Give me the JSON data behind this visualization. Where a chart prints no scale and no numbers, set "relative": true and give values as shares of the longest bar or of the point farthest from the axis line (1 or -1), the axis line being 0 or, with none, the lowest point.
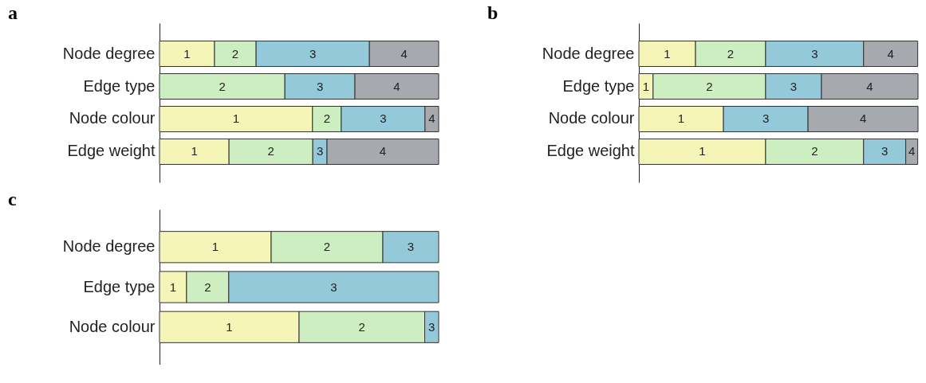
{
  "chart_data": [
    {
      "type": "bar",
      "title": "a",
      "orientation": "horizontal",
      "stacked": true,
      "relative": true,
      "tick_labels": "y",
      "categories": [
        "Node degree",
        "Edge type",
        "Node colour",
        "Edge weight"
      ],
      "series": [
        {
          "name": "1",
          "color": "#f5f5b8",
          "values": [
            0.197,
            0,
            0.548,
            0.249
          ]
        },
        {
          "name": "2",
          "color": "#cdeec0",
          "values": [
            0.149,
            0.449,
            0.103,
            0.3
          ]
        },
        {
          "name": "3",
          "color": "#94c9d9",
          "values": [
            0.406,
            0.251,
            0.3,
            0.051
          ]
        },
        {
          "name": "4",
          "color": "#a6a9ad",
          "values": [
            0.248,
            0.3,
            0.049,
            0.4
          ]
        }
      ]
    },
    {
      "type": "bar",
      "title": "b",
      "orientation": "horizontal",
      "stacked": true,
      "relative": true,
      "tick_labels": "y",
      "categories": [
        "Node degree",
        "Edge type",
        "Node colour",
        "Edge weight"
      ],
      "series": [
        {
          "name": "1",
          "color": "#f5f5b8",
          "values": [
            0.203,
            0.051,
            0.303,
            0.454
          ]
        },
        {
          "name": "2",
          "color": "#cdeec0",
          "values": [
            0.251,
            0.403,
            0,
            0.351
          ]
        },
        {
          "name": "3",
          "color": "#94c9d9",
          "values": [
            0.351,
            0.2,
            0.303,
            0.151
          ]
        },
        {
          "name": "4",
          "color": "#a6a9ad",
          "values": [
            0.194,
            0.346,
            0.394,
            0.043
          ]
        }
      ]
    },
    {
      "type": "bar",
      "title": "c",
      "orientation": "horizontal",
      "stacked": true,
      "relative": true,
      "tick_labels": "y",
      "categories": [
        "Node degree",
        "Edge type",
        "Node colour"
      ],
      "series": [
        {
          "name": "1",
          "color": "#f5f5b8",
          "values": [
            0.4,
            0.097,
            0.5
          ]
        },
        {
          "name": "2",
          "color": "#cdeec0",
          "values": [
            0.4,
            0.151,
            0.45
          ]
        },
        {
          "name": "3",
          "color": "#94c9d9",
          "values": [
            0.2,
            0.752,
            0.05
          ]
        }
      ]
    }
  ]
}
